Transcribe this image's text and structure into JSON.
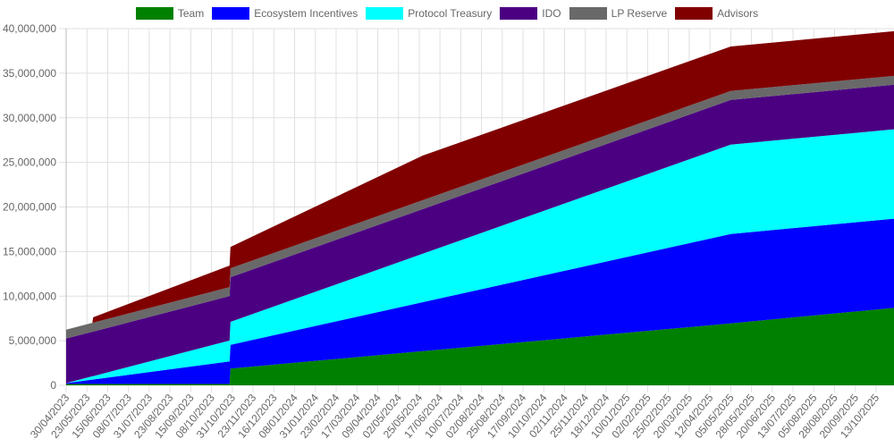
{
  "chart_data": {
    "type": "area",
    "stacked": true,
    "title": "",
    "xlabel": "",
    "ylabel": "",
    "ylim": [
      0,
      40000000
    ],
    "yticks": [
      "0",
      "5,000,000",
      "10,000,000",
      "15,000,000",
      "20,000,000",
      "25,000,000",
      "30,000,000",
      "35,000,000",
      "40,000,000"
    ],
    "grid": true,
    "legend_position": "top",
    "x_tick_labels": [
      "30/04/2023",
      "23/05/2023",
      "15/06/2023",
      "08/07/2023",
      "31/07/2023",
      "23/08/2023",
      "15/09/2023",
      "08/10/2023",
      "31/10/2023",
      "23/11/2023",
      "16/12/2023",
      "08/01/2024",
      "31/01/2024",
      "23/02/2024",
      "17/03/2024",
      "09/04/2024",
      "02/05/2024",
      "25/05/2024",
      "17/06/2024",
      "10/07/2024",
      "02/08/2024",
      "25/08/2024",
      "17/09/2024",
      "10/10/2024",
      "02/11/2024",
      "25/11/2024",
      "18/12/2024",
      "10/01/2025",
      "02/02/2025",
      "25/02/2025",
      "20/03/2025",
      "12/04/2025",
      "05/05/2025",
      "28/05/2025",
      "20/06/2025",
      "13/07/2025",
      "05/08/2025",
      "28/08/2025",
      "20/09/2025",
      "13/10/2025"
    ],
    "x": [
      "2023-04-30",
      "2023-05-29",
      "2023-05-30",
      "2023-10-28",
      "2023-10-29",
      "2024-05-29",
      "2025-05-05",
      "2025-11-02"
    ],
    "series": [
      {
        "name": "Team",
        "color": "#008000",
        "values": [
          150000,
          150000,
          150000,
          150000,
          1870000,
          3830000,
          6950000,
          8690000
        ]
      },
      {
        "name": "Ecosystem Incentives",
        "color": "#0000ff",
        "values": [
          100000,
          490000,
          500000,
          2540000,
          2670000,
          5490000,
          10020000,
          10000000
        ]
      },
      {
        "name": "Protocol Treasury",
        "color": "#00ffff",
        "values": [
          0,
          370000,
          380000,
          2330000,
          2580000,
          5440000,
          10030000,
          10020000
        ]
      },
      {
        "name": "IDO",
        "color": "#4b0082",
        "values": [
          5000000,
          5000000,
          5000000,
          5000000,
          5000000,
          5000000,
          5000000,
          5000000
        ]
      },
      {
        "name": "LP Reserve",
        "color": "#696969",
        "values": [
          1000000,
          1000000,
          1000000,
          1000000,
          1000000,
          1000000,
          1000000,
          1000000
        ]
      },
      {
        "name": "Advisors",
        "color": "#800000",
        "values": [
          0,
          0,
          600000,
          2400000,
          2400000,
          5000000,
          5000000,
          5000000
        ]
      }
    ]
  }
}
